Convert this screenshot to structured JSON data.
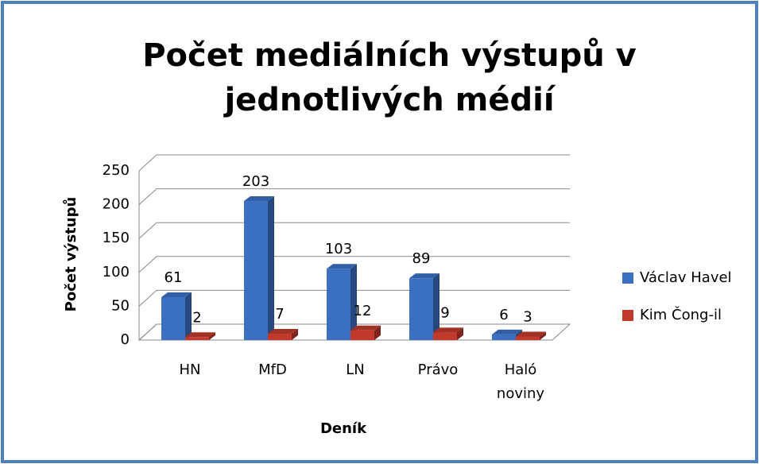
{
  "chart_data": {
    "type": "bar3d",
    "title": "Počet mediálních výstupů v jednotlivých médií",
    "x_label": "Deník",
    "y_label": "Počet výstupů",
    "categories": [
      "HN",
      "MfD",
      "LN",
      "Právo",
      "Haló noviny"
    ],
    "series": [
      {
        "name": "Václav Havel",
        "color": "#3b6fc2",
        "values": [
          61,
          203,
          103,
          89,
          6
        ]
      },
      {
        "name": "Kim Čong-il",
        "color": "#c0392b",
        "values": [
          2,
          7,
          12,
          9,
          3
        ]
      }
    ],
    "ylim": [
      0,
      250
    ],
    "yticks": [
      0,
      50,
      100,
      150,
      200,
      250
    ],
    "grid": true,
    "legend": "right"
  }
}
